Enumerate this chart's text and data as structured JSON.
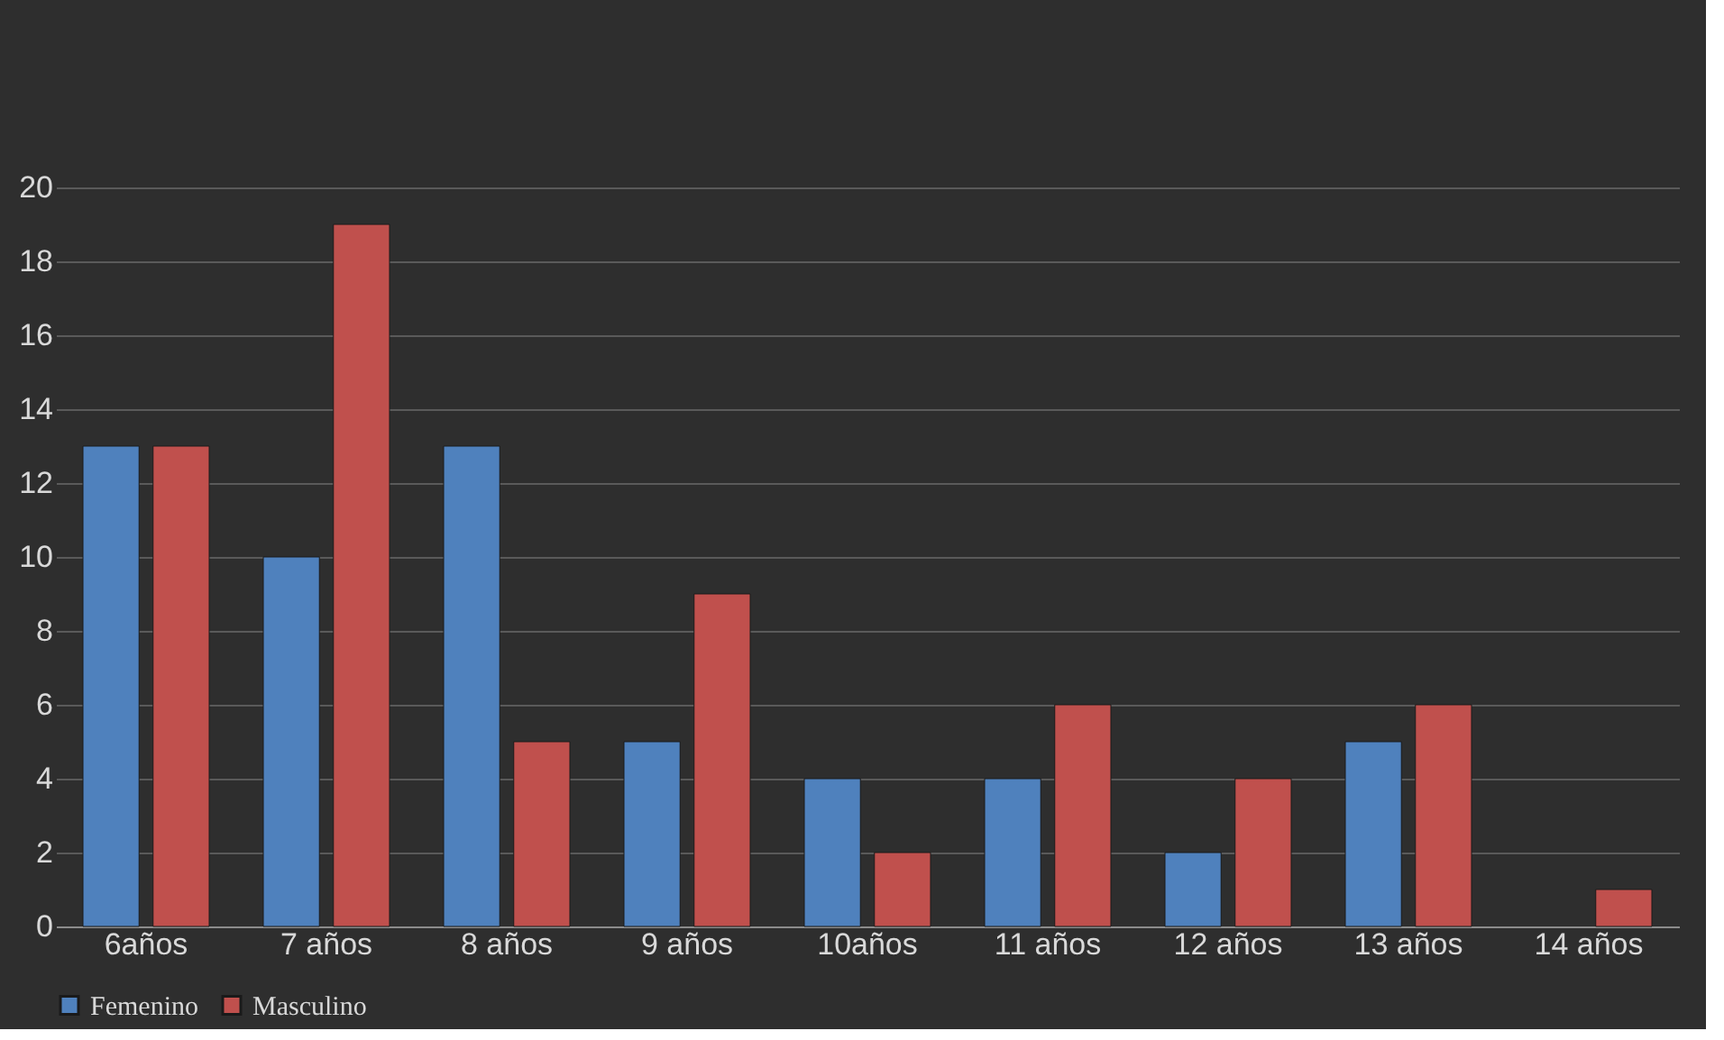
{
  "chart_data": {
    "type": "bar",
    "categories": [
      "6años",
      "7 años",
      "8 años",
      "9 años",
      "10años",
      "11 años",
      "12 años",
      "13 años",
      "14 años"
    ],
    "series": [
      {
        "name": "Femenino",
        "color": "#4f81bd",
        "values": [
          13,
          10,
          13,
          5,
          4,
          4,
          2,
          5,
          null
        ]
      },
      {
        "name": "Masculino",
        "color": "#c0504d",
        "values": [
          13,
          19,
          5,
          9,
          2,
          6,
          4,
          6,
          1
        ]
      }
    ],
    "ylim": [
      0,
      20
    ],
    "yticks": [
      0,
      2,
      4,
      6,
      8,
      10,
      12,
      14,
      16,
      18,
      20
    ],
    "grid": "y",
    "legend": "bottom"
  }
}
